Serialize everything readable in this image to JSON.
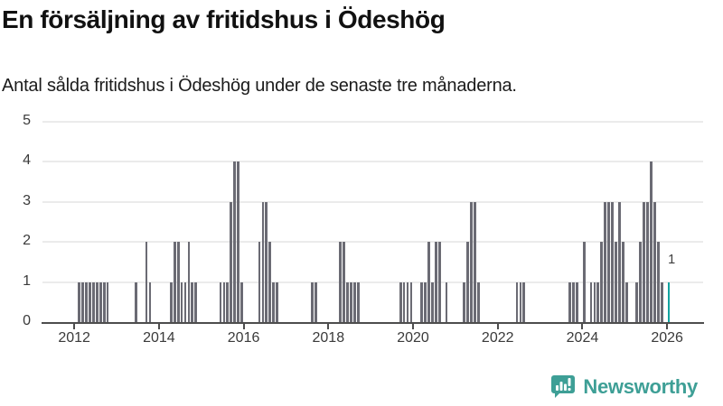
{
  "header": {
    "title": "En försäljning av fritidshus i Ödeshög",
    "subtitle": "Antal sålda fritidshus i Ödeshög under de senaste tre månaderna."
  },
  "annotation": {
    "current_value_label": "1"
  },
  "branding": {
    "logo_text": "Newsworthy",
    "logo_color": "#3e9f96"
  },
  "colors": {
    "bar": "#6b6b74",
    "bar_current": "#12a2a0",
    "grid": "#ebebeb",
    "axis": "#4d4d4d",
    "text": "#3a3a3a",
    "title": "#111111"
  },
  "chart_data": {
    "type": "bar",
    "title": "En försäljning av fritidshus i Ödeshög",
    "subtitle": "Antal sålda fritidshus i Ödeshög under de senaste tre månaderna.",
    "xlabel": "",
    "ylabel": "",
    "grid": true,
    "x_axis": {
      "ticks": [
        "2012",
        "2014",
        "2016",
        "2018",
        "2020",
        "2022",
        "2024",
        "2026"
      ],
      "range": [
        2011.25,
        2026.85
      ]
    },
    "y_axis": {
      "ticks": [
        "0",
        "1",
        "2",
        "3",
        "4",
        "5"
      ],
      "range": [
        0,
        5
      ]
    },
    "values_for_months_not_listed": 0,
    "points": [
      {
        "month": "2012-02",
        "value": 1
      },
      {
        "month": "2012-03",
        "value": 1
      },
      {
        "month": "2012-04",
        "value": 1
      },
      {
        "month": "2012-05",
        "value": 1
      },
      {
        "month": "2012-06",
        "value": 1
      },
      {
        "month": "2012-07",
        "value": 1
      },
      {
        "month": "2012-08",
        "value": 1
      },
      {
        "month": "2012-09",
        "value": 1
      },
      {
        "month": "2012-10",
        "value": 1
      },
      {
        "month": "2013-06",
        "value": 1
      },
      {
        "month": "2013-09",
        "value": 2
      },
      {
        "month": "2013-10",
        "value": 1
      },
      {
        "month": "2014-04",
        "value": 1
      },
      {
        "month": "2014-05",
        "value": 2
      },
      {
        "month": "2014-06",
        "value": 2
      },
      {
        "month": "2014-07",
        "value": 1
      },
      {
        "month": "2014-08",
        "value": 1
      },
      {
        "month": "2014-09",
        "value": 2
      },
      {
        "month": "2014-10",
        "value": 1
      },
      {
        "month": "2014-11",
        "value": 1
      },
      {
        "month": "2015-06",
        "value": 1
      },
      {
        "month": "2015-07",
        "value": 1
      },
      {
        "month": "2015-08",
        "value": 1
      },
      {
        "month": "2015-09",
        "value": 3
      },
      {
        "month": "2015-10",
        "value": 4
      },
      {
        "month": "2015-11",
        "value": 4
      },
      {
        "month": "2015-12",
        "value": 1
      },
      {
        "month": "2016-05",
        "value": 2
      },
      {
        "month": "2016-06",
        "value": 3
      },
      {
        "month": "2016-07",
        "value": 3
      },
      {
        "month": "2016-08",
        "value": 2
      },
      {
        "month": "2016-09",
        "value": 1
      },
      {
        "month": "2016-10",
        "value": 1
      },
      {
        "month": "2017-08",
        "value": 1
      },
      {
        "month": "2017-09",
        "value": 1
      },
      {
        "month": "2018-04",
        "value": 2
      },
      {
        "month": "2018-05",
        "value": 2
      },
      {
        "month": "2018-06",
        "value": 1
      },
      {
        "month": "2018-07",
        "value": 1
      },
      {
        "month": "2018-08",
        "value": 1
      },
      {
        "month": "2018-09",
        "value": 1
      },
      {
        "month": "2019-09",
        "value": 1
      },
      {
        "month": "2019-10",
        "value": 1
      },
      {
        "month": "2019-11",
        "value": 1
      },
      {
        "month": "2019-12",
        "value": 1
      },
      {
        "month": "2020-03",
        "value": 1
      },
      {
        "month": "2020-04",
        "value": 1
      },
      {
        "month": "2020-05",
        "value": 2
      },
      {
        "month": "2020-06",
        "value": 1
      },
      {
        "month": "2020-07",
        "value": 2
      },
      {
        "month": "2020-08",
        "value": 2
      },
      {
        "month": "2020-10",
        "value": 1
      },
      {
        "month": "2021-03",
        "value": 1
      },
      {
        "month": "2021-04",
        "value": 2
      },
      {
        "month": "2021-05",
        "value": 3
      },
      {
        "month": "2021-06",
        "value": 3
      },
      {
        "month": "2021-07",
        "value": 1
      },
      {
        "month": "2022-06",
        "value": 1
      },
      {
        "month": "2022-07",
        "value": 1
      },
      {
        "month": "2022-08",
        "value": 1
      },
      {
        "month": "2023-09",
        "value": 1
      },
      {
        "month": "2023-10",
        "value": 1
      },
      {
        "month": "2023-11",
        "value": 1
      },
      {
        "month": "2024-01",
        "value": 2
      },
      {
        "month": "2024-03",
        "value": 1
      },
      {
        "month": "2024-04",
        "value": 1
      },
      {
        "month": "2024-05",
        "value": 1
      },
      {
        "month": "2024-06",
        "value": 2
      },
      {
        "month": "2024-07",
        "value": 3
      },
      {
        "month": "2024-08",
        "value": 3
      },
      {
        "month": "2024-09",
        "value": 3
      },
      {
        "month": "2024-10",
        "value": 2
      },
      {
        "month": "2024-11",
        "value": 3
      },
      {
        "month": "2024-12",
        "value": 2
      },
      {
        "month": "2025-01",
        "value": 1
      },
      {
        "month": "2025-04",
        "value": 1
      },
      {
        "month": "2025-05",
        "value": 2
      },
      {
        "month": "2025-06",
        "value": 3
      },
      {
        "month": "2025-07",
        "value": 3
      },
      {
        "month": "2025-08",
        "value": 4
      },
      {
        "month": "2025-09",
        "value": 3
      },
      {
        "month": "2025-10",
        "value": 2
      },
      {
        "month": "2025-11",
        "value": 1
      },
      {
        "month": "2026-01",
        "value": 1,
        "current": true,
        "label": "1"
      }
    ]
  }
}
